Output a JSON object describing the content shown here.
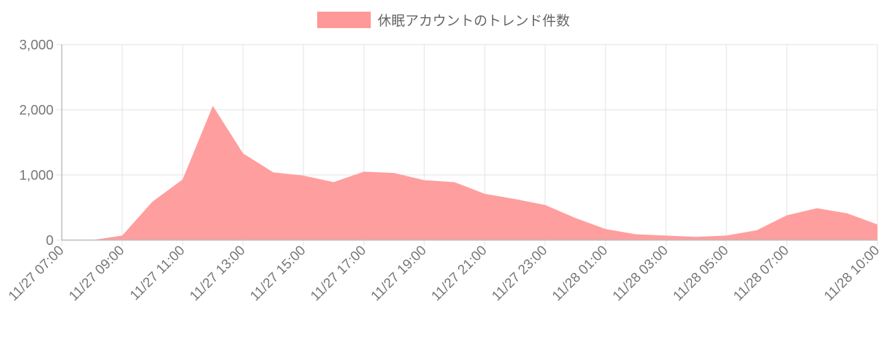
{
  "chart_data": {
    "type": "area",
    "title": "",
    "xlabel": "",
    "ylabel": "",
    "legend": {
      "placement": "top-center"
    },
    "grid": true,
    "ylim": [
      0,
      3000
    ],
    "y_ticks": [
      "0",
      "1,000",
      "2,000",
      "3,000"
    ],
    "x_tick_labels": [
      "11/27 07:00",
      "11/27 09:00",
      "11/27 11:00",
      "11/27 13:00",
      "11/27 15:00",
      "11/27 17:00",
      "11/27 19:00",
      "11/27 21:00",
      "11/27 23:00",
      "11/28 01:00",
      "11/28 03:00",
      "11/28 05:00",
      "11/28 07:00",
      "11/28 10:00"
    ],
    "x": [
      "11/27 07:00",
      "11/27 08:00",
      "11/27 09:00",
      "11/27 10:00",
      "11/27 11:00",
      "11/27 12:00",
      "11/27 13:00",
      "11/27 14:00",
      "11/27 15:00",
      "11/27 16:00",
      "11/27 17:00",
      "11/27 18:00",
      "11/27 19:00",
      "11/27 20:00",
      "11/27 21:00",
      "11/27 22:00",
      "11/27 23:00",
      "11/28 00:00",
      "11/28 01:00",
      "11/28 02:00",
      "11/28 03:00",
      "11/28 04:00",
      "11/28 05:00",
      "11/28 06:00",
      "11/28 07:00",
      "11/28 08:00",
      "11/28 09:00",
      "11/28 10:00"
    ],
    "series": [
      {
        "name": "休眠アカウントのトレンド件数",
        "color": "#ff9999",
        "values": [
          0,
          0,
          70,
          590,
          930,
          2060,
          1330,
          1040,
          990,
          890,
          1050,
          1030,
          920,
          890,
          710,
          630,
          540,
          340,
          170,
          90,
          70,
          50,
          70,
          150,
          380,
          490,
          410,
          240
        ]
      }
    ]
  }
}
